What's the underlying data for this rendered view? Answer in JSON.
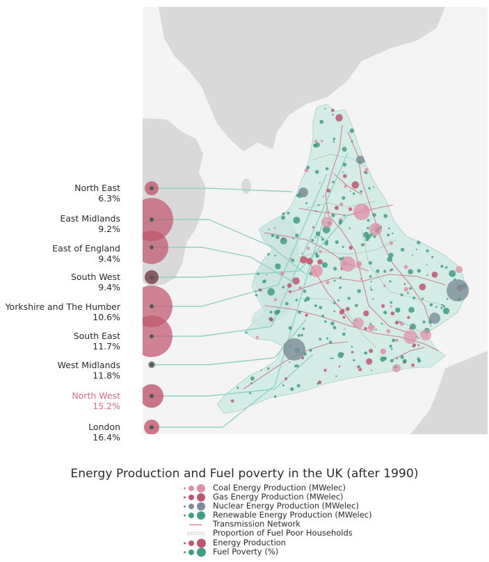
{
  "map": {
    "regions": [
      {
        "name": "North East",
        "value": "6.3%",
        "highlighted": false
      },
      {
        "name": "East Midlands",
        "value": "9.2%",
        "highlighted": false
      },
      {
        "name": "East of England",
        "value": "9.4%",
        "highlighted": false
      },
      {
        "name": "South West",
        "value": "9.4%",
        "highlighted": false
      },
      {
        "name": "Yorkshire and The Humber",
        "value": "10.6%",
        "highlighted": false
      },
      {
        "name": "South East",
        "value": "11.7%",
        "highlighted": false
      },
      {
        "name": "West Midlands",
        "value": "11.8%",
        "highlighted": false
      },
      {
        "name": "North West",
        "value": "15.2%",
        "highlighted": true
      },
      {
        "name": "London",
        "value": "16.4%",
        "highlighted": false
      }
    ]
  },
  "legend": {
    "title": "Energy Production and Fuel poverty in the UK (after 1990)",
    "items": [
      {
        "label": "Coal Energy Production (MWelec)",
        "symbol": "coal-dots"
      },
      {
        "label": "Gas Energy Production (MWelec)",
        "symbol": "gas-dots"
      },
      {
        "label": "Nuclear Energy Production (MWelec)",
        "symbol": "nuclear-dots"
      },
      {
        "label": "Renewable Energy Production (MWelec)",
        "symbol": "renewable-dots"
      },
      {
        "label": "Transmission Network",
        "symbol": "red-line"
      },
      {
        "label": "Proportion of Fuel Poor Households",
        "symbol": "dotted-texture"
      },
      {
        "label": "Energy Production",
        "symbol": "production-dots"
      },
      {
        "label": "Fuel Poverty (%)",
        "symbol": "poverty-dots"
      }
    ]
  },
  "colors": {
    "coal": "#e08ea4",
    "gas": "#c0566e",
    "nuclear": "#7a8d97",
    "renewable": "#3f9e84",
    "land_fill": "#d3ece6",
    "transmission": "#d05a74",
    "highlight_text": "#d86a86",
    "background_land": "#dcdcdc"
  }
}
